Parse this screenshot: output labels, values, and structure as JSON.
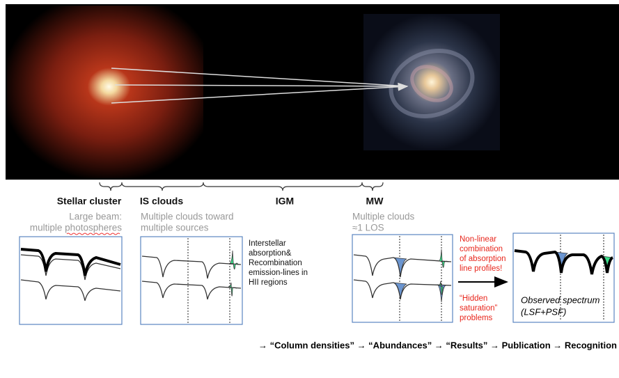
{
  "labels": {
    "stellar_cluster": "Stellar cluster",
    "is_clouds": "IS clouds",
    "igm": "IGM",
    "mw": "MW"
  },
  "descriptions": {
    "stellar_cluster": [
      "Large beam:",
      "multiple photospheres"
    ],
    "is_clouds": [
      "Multiple clouds toward",
      "multiple sources"
    ],
    "mw": [
      "Multiple clouds",
      "≈1 LOS"
    ]
  },
  "interstellar_note": [
    "Interstellar",
    "absorption&",
    "Recombination",
    "emission-lines in",
    "HII regions"
  ],
  "nonlinear_note": [
    "Non-linear",
    "combination",
    "of absorption",
    "line profiles!"
  ],
  "saturation_note": [
    "“Hidden",
    "saturation”",
    "problems"
  ],
  "observed_spectrum": [
    "Observed spectrum",
    "(LSF+PSF)"
  ],
  "pipeline": "→ “Column densities” → “Abundances” → “Results” → Publication → Recognition"
}
